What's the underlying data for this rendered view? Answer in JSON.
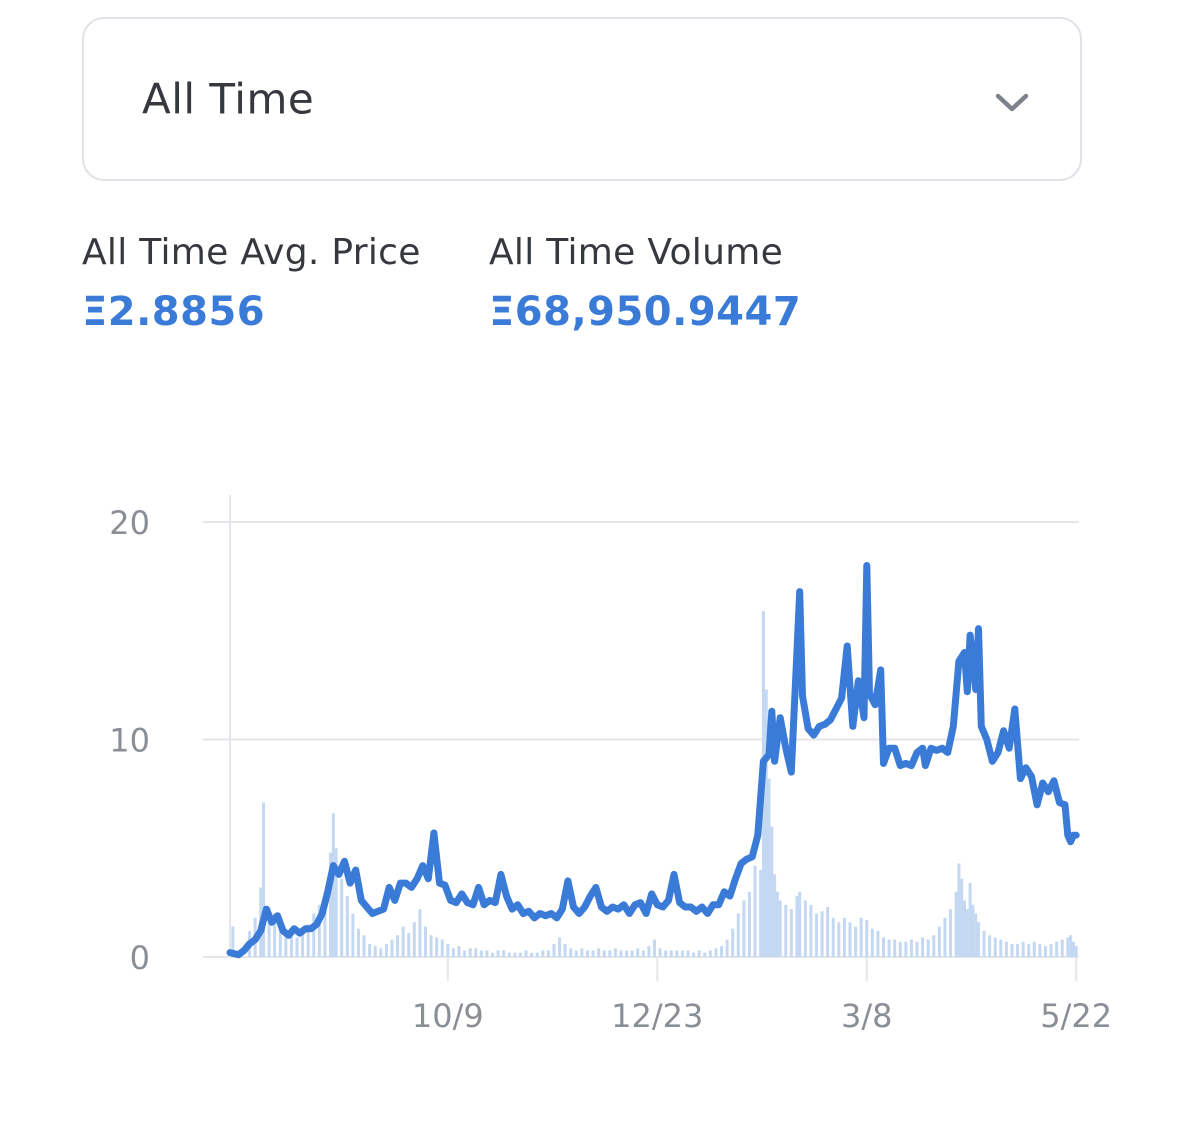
{
  "filter": {
    "selected": "All Time",
    "icon": "chevron-down-icon"
  },
  "stats": {
    "avg_label": "All Time Avg. Price",
    "avg_value": "Ξ2.8856",
    "volume_label": "All Time Volume",
    "volume_value": "Ξ68,950.9447"
  },
  "colors": {
    "accent": "#3b7bd8",
    "line": "#3b7bd8",
    "volume_bars": "#c4d8f2",
    "grid": "#e4e6ea",
    "label": "#8a8f96",
    "border": "#dfe2e6"
  },
  "chart_data": {
    "type": "line",
    "title": "",
    "xlabel": "",
    "ylabel": "",
    "ylim": [
      0,
      20
    ],
    "yticks": [
      0,
      10,
      20
    ],
    "x_range_days": [
      -78,
      226
    ],
    "xticks": [
      {
        "day": 0,
        "label": "10/9"
      },
      {
        "day": 75,
        "label": "12/23"
      },
      {
        "day": 150,
        "label": "3/8"
      },
      {
        "day": 225,
        "label": "5/22"
      }
    ],
    "grid": true,
    "series": [
      {
        "kind": "line",
        "points": [
          [
            -78,
            0.2
          ],
          [
            -75,
            0.1
          ],
          [
            -73,
            0.3
          ],
          [
            -71,
            0.6
          ],
          [
            -69,
            0.8
          ],
          [
            -67,
            1.2
          ],
          [
            -65,
            2.2
          ],
          [
            -63,
            1.6
          ],
          [
            -61,
            1.9
          ],
          [
            -59,
            1.2
          ],
          [
            -57,
            1.0
          ],
          [
            -55,
            1.3
          ],
          [
            -53,
            1.1
          ],
          [
            -51,
            1.3
          ],
          [
            -49,
            1.3
          ],
          [
            -47,
            1.5
          ],
          [
            -45,
            2.0
          ],
          [
            -43,
            3.0
          ],
          [
            -41,
            4.2
          ],
          [
            -39,
            3.8
          ],
          [
            -37,
            4.4
          ],
          [
            -35,
            3.4
          ],
          [
            -33,
            4.0
          ],
          [
            -31,
            2.6
          ],
          [
            -29,
            2.3
          ],
          [
            -27,
            2.0
          ],
          [
            -25,
            2.1
          ],
          [
            -23,
            2.2
          ],
          [
            -21,
            3.2
          ],
          [
            -19,
            2.6
          ],
          [
            -17,
            3.4
          ],
          [
            -15,
            3.4
          ],
          [
            -13,
            3.2
          ],
          [
            -11,
            3.6
          ],
          [
            -9,
            4.2
          ],
          [
            -7,
            3.6
          ],
          [
            -5,
            5.7
          ],
          [
            -3,
            3.4
          ],
          [
            -1,
            3.3
          ],
          [
            1,
            2.6
          ],
          [
            3,
            2.5
          ],
          [
            5,
            2.9
          ],
          [
            7,
            2.5
          ],
          [
            9,
            2.4
          ],
          [
            11,
            3.2
          ],
          [
            13,
            2.4
          ],
          [
            15,
            2.6
          ],
          [
            17,
            2.5
          ],
          [
            19,
            3.8
          ],
          [
            21,
            2.8
          ],
          [
            23,
            2.2
          ],
          [
            25,
            2.4
          ],
          [
            27,
            2.0
          ],
          [
            29,
            2.1
          ],
          [
            31,
            1.8
          ],
          [
            33,
            2.0
          ],
          [
            35,
            1.9
          ],
          [
            37,
            2.0
          ],
          [
            39,
            1.8
          ],
          [
            41,
            2.2
          ],
          [
            43,
            3.5
          ],
          [
            45,
            2.3
          ],
          [
            47,
            2.0
          ],
          [
            49,
            2.3
          ],
          [
            51,
            2.8
          ],
          [
            53,
            3.2
          ],
          [
            55,
            2.3
          ],
          [
            57,
            2.1
          ],
          [
            59,
            2.3
          ],
          [
            61,
            2.2
          ],
          [
            63,
            2.4
          ],
          [
            65,
            2.0
          ],
          [
            67,
            2.4
          ],
          [
            69,
            2.5
          ],
          [
            71,
            2.0
          ],
          [
            73,
            2.9
          ],
          [
            75,
            2.4
          ],
          [
            77,
            2.3
          ],
          [
            79,
            2.6
          ],
          [
            81,
            3.8
          ],
          [
            83,
            2.5
          ],
          [
            85,
            2.3
          ],
          [
            87,
            2.3
          ],
          [
            89,
            2.1
          ],
          [
            91,
            2.3
          ],
          [
            93,
            2.0
          ],
          [
            95,
            2.4
          ],
          [
            97,
            2.4
          ],
          [
            99,
            3.0
          ],
          [
            101,
            2.8
          ],
          [
            103,
            3.6
          ],
          [
            105,
            4.3
          ],
          [
            107,
            4.5
          ],
          [
            109,
            4.6
          ],
          [
            111,
            5.6
          ],
          [
            113,
            9.0
          ],
          [
            115,
            9.3
          ],
          [
            116,
            11.3
          ],
          [
            117,
            9.0
          ],
          [
            119,
            11.0
          ],
          [
            121,
            9.6
          ],
          [
            123,
            8.5
          ],
          [
            125,
            14.0
          ],
          [
            126,
            16.8
          ],
          [
            127,
            12.0
          ],
          [
            129,
            10.5
          ],
          [
            131,
            10.2
          ],
          [
            133,
            10.6
          ],
          [
            135,
            10.7
          ],
          [
            137,
            10.9
          ],
          [
            139,
            11.4
          ],
          [
            141,
            11.9
          ],
          [
            143,
            14.3
          ],
          [
            145,
            10.6
          ],
          [
            147,
            12.7
          ],
          [
            149,
            11.0
          ],
          [
            150,
            18.0
          ],
          [
            151,
            12.1
          ],
          [
            153,
            11.6
          ],
          [
            155,
            13.2
          ],
          [
            156,
            8.9
          ],
          [
            158,
            9.6
          ],
          [
            160,
            9.6
          ],
          [
            162,
            8.8
          ],
          [
            164,
            8.9
          ],
          [
            166,
            8.8
          ],
          [
            168,
            9.4
          ],
          [
            170,
            9.6
          ],
          [
            171,
            8.8
          ],
          [
            173,
            9.6
          ],
          [
            175,
            9.5
          ],
          [
            177,
            9.6
          ],
          [
            179,
            9.4
          ],
          [
            181,
            10.6
          ],
          [
            183,
            13.6
          ],
          [
            185,
            14.0
          ],
          [
            186,
            12.2
          ],
          [
            187,
            14.8
          ],
          [
            189,
            12.3
          ],
          [
            190,
            15.1
          ],
          [
            191,
            10.6
          ],
          [
            193,
            10.0
          ],
          [
            195,
            9.0
          ],
          [
            197,
            9.4
          ],
          [
            199,
            10.4
          ],
          [
            201,
            9.6
          ],
          [
            203,
            11.4
          ],
          [
            205,
            8.2
          ],
          [
            207,
            8.7
          ],
          [
            209,
            8.3
          ],
          [
            211,
            7.0
          ],
          [
            213,
            8.0
          ],
          [
            215,
            7.6
          ],
          [
            217,
            8.1
          ],
          [
            219,
            7.1
          ],
          [
            221,
            7.0
          ],
          [
            222,
            5.6
          ],
          [
            223,
            5.3
          ],
          [
            224,
            5.6
          ],
          [
            225,
            5.6
          ]
        ]
      },
      {
        "kind": "bars",
        "name": "",
        "points": [
          [
            -77,
            1.4
          ],
          [
            -74,
            0.4
          ],
          [
            -71,
            1.2
          ],
          [
            -69,
            1.8
          ],
          [
            -67,
            3.2
          ],
          [
            -66,
            7.1
          ],
          [
            -64,
            2.3
          ],
          [
            -62,
            2.0
          ],
          [
            -60,
            1.4
          ],
          [
            -58,
            1.2
          ],
          [
            -56,
            1.0
          ],
          [
            -54,
            0.9
          ],
          [
            -52,
            1.3
          ],
          [
            -50,
            1.5
          ],
          [
            -48,
            2.0
          ],
          [
            -46,
            2.4
          ],
          [
            -44,
            3.0
          ],
          [
            -42,
            4.8
          ],
          [
            -41,
            6.6
          ],
          [
            -40,
            5.0
          ],
          [
            -38,
            3.6
          ],
          [
            -36,
            2.8
          ],
          [
            -34,
            2.0
          ],
          [
            -32,
            1.3
          ],
          [
            -30,
            1.0
          ],
          [
            -28,
            0.6
          ],
          [
            -26,
            0.5
          ],
          [
            -24,
            0.4
          ],
          [
            -22,
            0.6
          ],
          [
            -20,
            0.8
          ],
          [
            -18,
            1.0
          ],
          [
            -16,
            1.4
          ],
          [
            -14,
            1.1
          ],
          [
            -12,
            1.6
          ],
          [
            -10,
            2.2
          ],
          [
            -8,
            1.4
          ],
          [
            -6,
            1.0
          ],
          [
            -4,
            0.9
          ],
          [
            -2,
            0.8
          ],
          [
            0,
            0.6
          ],
          [
            2,
            0.4
          ],
          [
            4,
            0.5
          ],
          [
            6,
            0.3
          ],
          [
            8,
            0.4
          ],
          [
            10,
            0.4
          ],
          [
            12,
            0.3
          ],
          [
            14,
            0.3
          ],
          [
            16,
            0.2
          ],
          [
            18,
            0.3
          ],
          [
            20,
            0.3
          ],
          [
            22,
            0.2
          ],
          [
            24,
            0.2
          ],
          [
            26,
            0.2
          ],
          [
            28,
            0.3
          ],
          [
            30,
            0.2
          ],
          [
            32,
            0.2
          ],
          [
            34,
            0.3
          ],
          [
            36,
            0.3
          ],
          [
            38,
            0.6
          ],
          [
            40,
            0.9
          ],
          [
            42,
            0.6
          ],
          [
            44,
            0.4
          ],
          [
            46,
            0.3
          ],
          [
            48,
            0.4
          ],
          [
            50,
            0.3
          ],
          [
            52,
            0.3
          ],
          [
            54,
            0.4
          ],
          [
            56,
            0.3
          ],
          [
            58,
            0.3
          ],
          [
            60,
            0.4
          ],
          [
            62,
            0.3
          ],
          [
            64,
            0.3
          ],
          [
            66,
            0.3
          ],
          [
            68,
            0.4
          ],
          [
            70,
            0.3
          ],
          [
            72,
            0.5
          ],
          [
            74,
            0.8
          ],
          [
            76,
            0.4
          ],
          [
            78,
            0.3
          ],
          [
            80,
            0.3
          ],
          [
            82,
            0.3
          ],
          [
            84,
            0.3
          ],
          [
            86,
            0.3
          ],
          [
            88,
            0.2
          ],
          [
            90,
            0.3
          ],
          [
            92,
            0.2
          ],
          [
            94,
            0.3
          ],
          [
            96,
            0.4
          ],
          [
            98,
            0.5
          ],
          [
            100,
            0.8
          ],
          [
            102,
            1.3
          ],
          [
            104,
            2.0
          ],
          [
            106,
            2.6
          ],
          [
            108,
            3.0
          ],
          [
            110,
            4.2
          ],
          [
            112,
            4.0
          ],
          [
            113,
            15.9
          ],
          [
            114,
            12.3
          ],
          [
            115,
            8.2
          ],
          [
            116,
            6.0
          ],
          [
            117,
            3.8
          ],
          [
            118,
            3.0
          ],
          [
            119,
            2.6
          ],
          [
            121,
            2.4
          ],
          [
            123,
            2.2
          ],
          [
            125,
            2.8
          ],
          [
            126,
            3.0
          ],
          [
            128,
            2.6
          ],
          [
            130,
            2.4
          ],
          [
            132,
            2.0
          ],
          [
            134,
            2.1
          ],
          [
            136,
            2.3
          ],
          [
            138,
            1.8
          ],
          [
            140,
            1.6
          ],
          [
            142,
            1.8
          ],
          [
            144,
            1.6
          ],
          [
            146,
            1.4
          ],
          [
            148,
            1.8
          ],
          [
            150,
            1.7
          ],
          [
            152,
            1.3
          ],
          [
            154,
            1.2
          ],
          [
            156,
            0.9
          ],
          [
            158,
            0.8
          ],
          [
            160,
            0.8
          ],
          [
            162,
            0.7
          ],
          [
            164,
            0.7
          ],
          [
            166,
            0.8
          ],
          [
            168,
            0.7
          ],
          [
            170,
            0.9
          ],
          [
            172,
            0.8
          ],
          [
            174,
            1.0
          ],
          [
            176,
            1.4
          ],
          [
            178,
            1.8
          ],
          [
            180,
            2.2
          ],
          [
            182,
            3.0
          ],
          [
            183,
            4.3
          ],
          [
            184,
            3.6
          ],
          [
            185,
            2.6
          ],
          [
            186,
            2.2
          ],
          [
            187,
            3.4
          ],
          [
            188,
            2.4
          ],
          [
            189,
            2.0
          ],
          [
            190,
            1.6
          ],
          [
            192,
            1.2
          ],
          [
            194,
            1.0
          ],
          [
            196,
            0.9
          ],
          [
            198,
            0.8
          ],
          [
            200,
            0.7
          ],
          [
            202,
            0.6
          ],
          [
            204,
            0.6
          ],
          [
            206,
            0.7
          ],
          [
            208,
            0.6
          ],
          [
            210,
            0.7
          ],
          [
            212,
            0.6
          ],
          [
            214,
            0.5
          ],
          [
            216,
            0.6
          ],
          [
            218,
            0.7
          ],
          [
            220,
            0.8
          ],
          [
            222,
            0.9
          ],
          [
            223,
            1.0
          ],
          [
            224,
            0.7
          ],
          [
            225,
            0.5
          ]
        ]
      }
    ]
  }
}
